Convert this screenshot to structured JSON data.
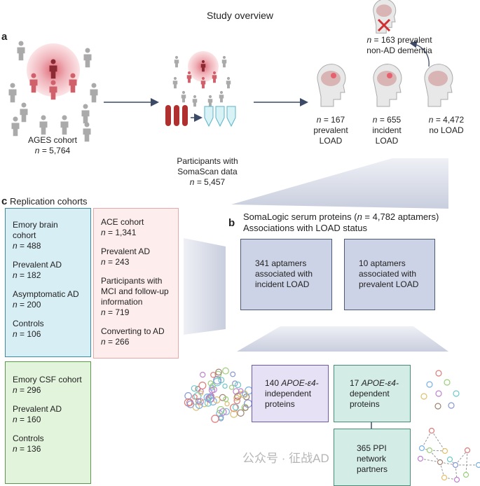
{
  "title": "Study overview",
  "panel_a": {
    "label": "a",
    "ages": {
      "name": "AGES cohort",
      "n": "= 5,764"
    },
    "soma": {
      "name1": "Participants with",
      "name2": "SomaScan data",
      "n": "= 5,457"
    },
    "groups": [
      {
        "n": "= 167",
        "l1": "prevalent",
        "l2": "LOAD"
      },
      {
        "n": "= 655",
        "l1": "incident",
        "l2": "LOAD"
      },
      {
        "n": "= 4,472",
        "l1": "no LOAD",
        "l2": ""
      }
    ],
    "dementia": {
      "n": "= 163 prevalent",
      "l2": "non-AD dementia"
    }
  },
  "panel_b": {
    "label": "b",
    "title1a": "SomaLogic serum proteins (",
    "title1b": " = 4,782 aptamers)",
    "title2": "Associations with LOAD status",
    "box1": [
      "341 aptamers",
      "associated with",
      "incident LOAD"
    ],
    "box2": [
      "10 aptamers",
      "associated with",
      "prevalent LOAD"
    ],
    "indep": {
      "pre": "140 ",
      "gene": "APOE-ε4-",
      "l2": "independent",
      "l3": "proteins"
    },
    "dep": {
      "pre": "17 ",
      "gene": "APOE-ε4-",
      "l2": "dependent",
      "l3": "proteins"
    },
    "ppi": [
      "365 PPI",
      "network",
      "partners"
    ]
  },
  "panel_c": {
    "label": "c",
    "title": "Replication cohorts",
    "emory_brain": [
      {
        "t": "Emory brain cohort",
        "n": "= 488"
      },
      {
        "t": "Prevalent AD",
        "n": "= 182"
      },
      {
        "t": "Asymptomatic AD",
        "n": "= 200"
      },
      {
        "t": "Controls",
        "n": "= 106"
      }
    ],
    "ace": [
      {
        "t": "ACE cohort",
        "n": "= 1,341"
      },
      {
        "t": "Prevalent AD",
        "n": "= 243"
      },
      {
        "t": "Participants with MCI and follow-up information",
        "n": "= 719"
      },
      {
        "t": "Converting to AD",
        "n": "= 266"
      }
    ],
    "emory_csf": [
      {
        "t": "Emory CSF cohort",
        "n": "= 296"
      },
      {
        "t": "Prevalent AD",
        "n": "= 160"
      },
      {
        "t": "Controls",
        "n": "= 136"
      }
    ]
  },
  "n_symbol": "n",
  "watermark": "公众号 · 征战AD",
  "colors": {
    "blue_box": "#d8eef5",
    "pink_box": "#fdeded",
    "green_box": "#e3f4dc",
    "aptamer_box": "#cdd3e6",
    "purple_box": "#e6e1f4",
    "teal_box": "#d3ece6",
    "arrow": "#3b4a66"
  }
}
